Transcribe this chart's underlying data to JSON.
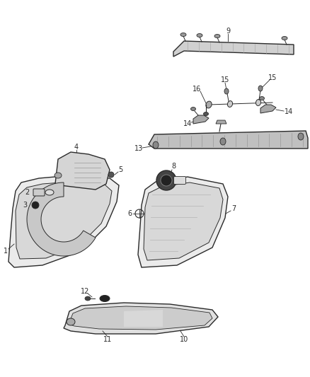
{
  "bg_color": "#ffffff",
  "fig_width": 4.38,
  "fig_height": 5.33,
  "dpi": 100,
  "col": "#2a2a2a",
  "col_light": "#888888",
  "col_fill": "#e8e8e8",
  "col_dark": "#555555"
}
